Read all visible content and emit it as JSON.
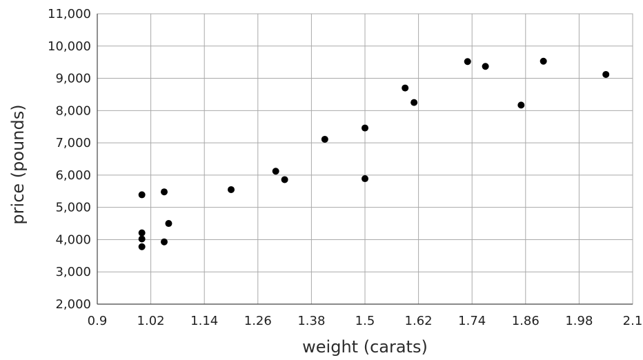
{
  "chart_data": {
    "type": "scatter",
    "xlabel": "weight (carats)",
    "ylabel": "price (pounds)",
    "xlim": [
      0.9,
      2.1
    ],
    "ylim": [
      2000,
      11000
    ],
    "x_ticks": [
      0.9,
      1.02,
      1.14,
      1.26,
      1.38,
      1.5,
      1.62,
      1.74,
      1.86,
      1.98,
      2.1
    ],
    "x_tick_labels": [
      "0.9",
      "1.02",
      "1.14",
      "1.26",
      "1.38",
      "1.5",
      "1.62",
      "1.74",
      "1.86",
      "1.98",
      "2.1"
    ],
    "y_ticks": [
      2000,
      3000,
      4000,
      5000,
      6000,
      7000,
      8000,
      9000,
      10000,
      11000
    ],
    "y_tick_labels": [
      "2,000",
      "3,000",
      "4,000",
      "5,000",
      "6,000",
      "7,000",
      "8,000",
      "9,000",
      "10,000",
      "11,000"
    ],
    "grid": true,
    "points": [
      {
        "x": 1.0,
        "y": 5390
      },
      {
        "x": 1.0,
        "y": 4210
      },
      {
        "x": 1.0,
        "y": 4020
      },
      {
        "x": 1.0,
        "y": 3780
      },
      {
        "x": 1.05,
        "y": 5480
      },
      {
        "x": 1.06,
        "y": 4500
      },
      {
        "x": 1.05,
        "y": 3930
      },
      {
        "x": 1.2,
        "y": 5550
      },
      {
        "x": 1.3,
        "y": 6120
      },
      {
        "x": 1.32,
        "y": 5860
      },
      {
        "x": 1.41,
        "y": 7110
      },
      {
        "x": 1.5,
        "y": 7460
      },
      {
        "x": 1.5,
        "y": 5890
      },
      {
        "x": 1.59,
        "y": 8700
      },
      {
        "x": 1.61,
        "y": 8250
      },
      {
        "x": 1.73,
        "y": 9520
      },
      {
        "x": 1.77,
        "y": 9370
      },
      {
        "x": 1.85,
        "y": 8170
      },
      {
        "x": 1.9,
        "y": 9530
      },
      {
        "x": 2.04,
        "y": 9120
      }
    ]
  }
}
